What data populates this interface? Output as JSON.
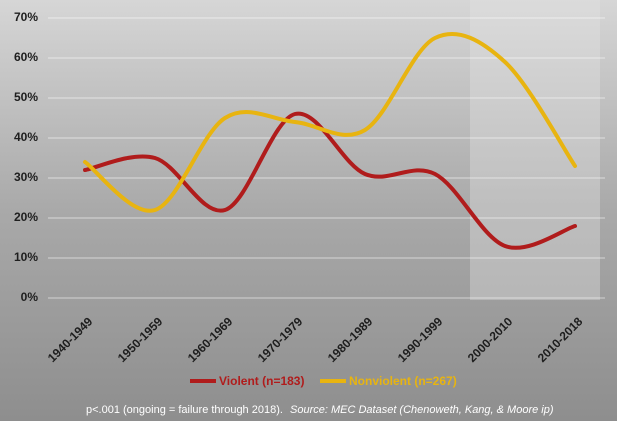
{
  "chart_data": {
    "type": "line",
    "categories": [
      "1940-1949",
      "1950-1959",
      "1960-1969",
      "1970-1979",
      "1980-1989",
      "1990-1999",
      "2000-2010",
      "2010-2018"
    ],
    "series": [
      {
        "name": "Violent (n=183)",
        "color": "#b01c1c",
        "values": [
          32,
          35,
          22,
          46,
          31,
          31,
          13,
          18
        ]
      },
      {
        "name": "Nonviolent (n=267)",
        "color": "#e8b410",
        "values": [
          34,
          22,
          45,
          44,
          42,
          65,
          59,
          33
        ]
      }
    ],
    "ylim": [
      0,
      70
    ],
    "yticks": [
      {
        "value": 0,
        "label": "0%"
      },
      {
        "value": 10,
        "label": "10%"
      },
      {
        "value": 20,
        "label": "20%"
      },
      {
        "value": 30,
        "label": "30%"
      },
      {
        "value": 40,
        "label": "40%"
      },
      {
        "value": 50,
        "label": "50%"
      },
      {
        "value": 60,
        "label": "60%"
      },
      {
        "value": 70,
        "label": "70%"
      }
    ],
    "grid": true,
    "footnote": "p<.001 (ongoing = failure through 2018).",
    "source": "Source: MEC Dataset (Chenoweth, Kang, & Moore ip)"
  }
}
